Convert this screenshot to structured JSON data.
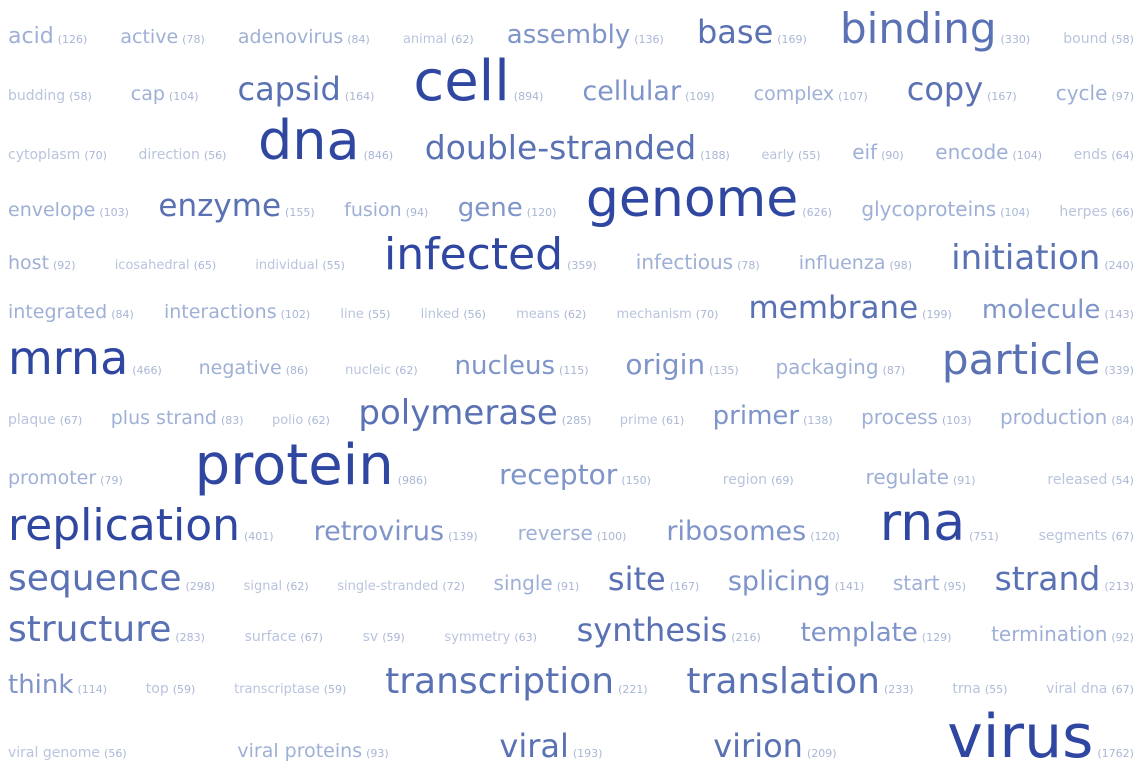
{
  "rows": [
    [
      {
        "t": "acid",
        "c": "(126)",
        "s": 22
      },
      {
        "t": "active",
        "c": "(78)",
        "s": 19
      },
      {
        "t": "adenovirus",
        "c": "(84)",
        "s": 19
      },
      {
        "t": "animal",
        "c": "(62)",
        "s": 13
      },
      {
        "t": "assembly",
        "c": "(136)",
        "s": 26
      },
      {
        "t": "base",
        "c": "(169)",
        "s": 32
      },
      {
        "t": "binding",
        "c": "(330)",
        "s": 42
      },
      {
        "t": "bound",
        "c": "(58)",
        "s": 14
      }
    ],
    [
      {
        "t": "budding",
        "c": "(58)",
        "s": 14
      },
      {
        "t": "cap",
        "c": "(104)",
        "s": 19
      },
      {
        "t": "capsid",
        "c": "(164)",
        "s": 32
      },
      {
        "t": "cell",
        "c": "(894)",
        "s": 56
      },
      {
        "t": "cellular",
        "c": "(109)",
        "s": 27
      },
      {
        "t": "complex",
        "c": "(107)",
        "s": 19
      },
      {
        "t": "copy",
        "c": "(167)",
        "s": 32
      },
      {
        "t": "cycle",
        "c": "(97)",
        "s": 20
      }
    ],
    [
      {
        "t": "cytoplasm",
        "c": "(70)",
        "s": 14
      },
      {
        "t": "direction",
        "c": "(56)",
        "s": 14
      },
      {
        "t": "dna",
        "c": "(846)",
        "s": 54
      },
      {
        "t": "double-stranded",
        "c": "(188)",
        "s": 33
      },
      {
        "t": "early",
        "c": "(55)",
        "s": 13
      },
      {
        "t": "eif",
        "c": "(90)",
        "s": 20
      },
      {
        "t": "encode",
        "c": "(104)",
        "s": 20
      },
      {
        "t": "ends",
        "c": "(64)",
        "s": 14
      }
    ],
    [
      {
        "t": "envelope",
        "c": "(103)",
        "s": 19
      },
      {
        "t": "enzyme",
        "c": "(155)",
        "s": 31
      },
      {
        "t": "fusion",
        "c": "(94)",
        "s": 19
      },
      {
        "t": "gene",
        "c": "(120)",
        "s": 26
      },
      {
        "t": "genome",
        "c": "(626)",
        "s": 52
      },
      {
        "t": "glycoproteins",
        "c": "(104)",
        "s": 20
      },
      {
        "t": "herpes",
        "c": "(66)",
        "s": 14
      }
    ],
    [
      {
        "t": "host",
        "c": "(92)",
        "s": 19
      },
      {
        "t": "icosahedral",
        "c": "(65)",
        "s": 13
      },
      {
        "t": "individual",
        "c": "(55)",
        "s": 13
      },
      {
        "t": "infected",
        "c": "(359)",
        "s": 44
      },
      {
        "t": "infectious",
        "c": "(78)",
        "s": 20
      },
      {
        "t": "influenza",
        "c": "(98)",
        "s": 19
      },
      {
        "t": "initiation",
        "c": "(240)",
        "s": 34
      }
    ],
    [
      {
        "t": "integrated",
        "c": "(84)",
        "s": 19
      },
      {
        "t": "interactions",
        "c": "(102)",
        "s": 19
      },
      {
        "t": "line",
        "c": "(55)",
        "s": 13
      },
      {
        "t": "linked",
        "c": "(56)",
        "s": 13
      },
      {
        "t": "means",
        "c": "(62)",
        "s": 13
      },
      {
        "t": "mechanism",
        "c": "(70)",
        "s": 13
      },
      {
        "t": "membrane",
        "c": "(199)",
        "s": 31
      },
      {
        "t": "molecule",
        "c": "(143)",
        "s": 26
      }
    ],
    [
      {
        "t": "mrna",
        "c": "(466)",
        "s": 46
      },
      {
        "t": "negative",
        "c": "(86)",
        "s": 19
      },
      {
        "t": "nucleic",
        "c": "(62)",
        "s": 13
      },
      {
        "t": "nucleus",
        "c": "(115)",
        "s": 26
      },
      {
        "t": "origin",
        "c": "(135)",
        "s": 28
      },
      {
        "t": "packaging",
        "c": "(87)",
        "s": 20
      },
      {
        "t": "particle",
        "c": "(339)",
        "s": 42
      }
    ],
    [
      {
        "t": "plaque",
        "c": "(67)",
        "s": 14
      },
      {
        "t": "plus strand",
        "c": "(83)",
        "s": 19
      },
      {
        "t": "polio",
        "c": "(62)",
        "s": 13
      },
      {
        "t": "polymerase",
        "c": "(285)",
        "s": 34
      },
      {
        "t": "prime",
        "c": "(61)",
        "s": 13
      },
      {
        "t": "primer",
        "c": "(138)",
        "s": 26
      },
      {
        "t": "process",
        "c": "(103)",
        "s": 20
      },
      {
        "t": "production",
        "c": "(84)",
        "s": 20
      }
    ],
    [
      {
        "t": "promoter",
        "c": "(79)",
        "s": 19
      },
      {
        "t": "protein",
        "c": "(986)",
        "s": 56
      },
      {
        "t": "receptor",
        "c": "(150)",
        "s": 28
      },
      {
        "t": "region",
        "c": "(69)",
        "s": 14
      },
      {
        "t": "regulate",
        "c": "(91)",
        "s": 20
      },
      {
        "t": "released",
        "c": "(54)",
        "s": 14
      }
    ],
    [
      {
        "t": "replication",
        "c": "(401)",
        "s": 44
      },
      {
        "t": "retrovirus",
        "c": "(139)",
        "s": 27
      },
      {
        "t": "reverse",
        "c": "(100)",
        "s": 20
      },
      {
        "t": "ribosomes",
        "c": "(120)",
        "s": 27
      },
      {
        "t": "rna",
        "c": "(751)",
        "s": 52
      },
      {
        "t": "segments",
        "c": "(67)",
        "s": 14
      }
    ],
    [
      {
        "t": "sequence",
        "c": "(298)",
        "s": 36
      },
      {
        "t": "signal",
        "c": "(62)",
        "s": 13
      },
      {
        "t": "single-stranded",
        "c": "(72)",
        "s": 13
      },
      {
        "t": "single",
        "c": "(91)",
        "s": 20
      },
      {
        "t": "site",
        "c": "(167)",
        "s": 32
      },
      {
        "t": "splicing",
        "c": "(141)",
        "s": 27
      },
      {
        "t": "start",
        "c": "(95)",
        "s": 20
      },
      {
        "t": "strand",
        "c": "(213)",
        "s": 33
      }
    ],
    [
      {
        "t": "structure",
        "c": "(283)",
        "s": 36
      },
      {
        "t": "surface",
        "c": "(67)",
        "s": 14
      },
      {
        "t": "sv",
        "c": "(59)",
        "s": 14
      },
      {
        "t": "symmetry",
        "c": "(63)",
        "s": 13
      },
      {
        "t": "synthesis",
        "c": "(216)",
        "s": 32
      },
      {
        "t": "template",
        "c": "(129)",
        "s": 26
      },
      {
        "t": "termination",
        "c": "(92)",
        "s": 20
      }
    ],
    [
      {
        "t": "think",
        "c": "(114)",
        "s": 26
      },
      {
        "t": "top",
        "c": "(59)",
        "s": 14
      },
      {
        "t": "transcriptase",
        "c": "(59)",
        "s": 13
      },
      {
        "t": "transcription",
        "c": "(221)",
        "s": 36
      },
      {
        "t": "translation",
        "c": "(233)",
        "s": 36
      },
      {
        "t": "trna",
        "c": "(55)",
        "s": 14
      },
      {
        "t": "viral dna",
        "c": "(67)",
        "s": 14
      }
    ],
    [
      {
        "t": "viral genome",
        "c": "(56)",
        "s": 14
      },
      {
        "t": "viral proteins",
        "c": "(93)",
        "s": 19
      },
      {
        "t": "viral",
        "c": "(193)",
        "s": 32
      },
      {
        "t": "virion",
        "c": "(209)",
        "s": 32
      },
      {
        "t": "virus",
        "c": "(1762)",
        "s": 60
      }
    ]
  ]
}
